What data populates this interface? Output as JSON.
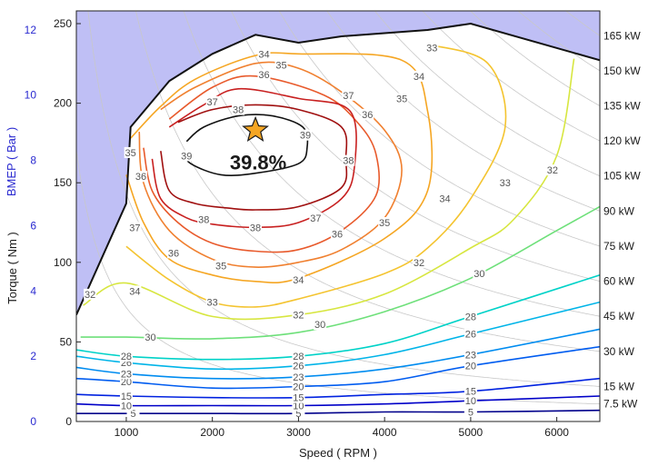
{
  "chart_data": {
    "type": "contour",
    "xlabel": "Speed ( RPM )",
    "ylabel": "Torque ( Nm )",
    "y2label": "BMEP ( Bar )",
    "xlim": [
      420,
      6500
    ],
    "ylim": [
      0,
      258
    ],
    "x_ticks": [
      "1000",
      "2000",
      "3000",
      "4000",
      "5000",
      "6000"
    ],
    "x_tick_values": [
      1000,
      2000,
      3000,
      4000,
      5000,
      6000
    ],
    "y_ticks": [
      "0",
      "50",
      "100",
      "150",
      "200",
      "250"
    ],
    "y_tick_values": [
      0,
      50,
      100,
      150,
      200,
      250
    ],
    "bmep_ticks": [
      "0",
      "2",
      "4",
      "6",
      "8",
      "10",
      "12"
    ],
    "bmep_tick_values": [
      0,
      2,
      4,
      6,
      8,
      10,
      12
    ],
    "bmep_per_nm": 0.04876,
    "power_lines": [
      {
        "label": "7.5 kW",
        "kw": 7.5
      },
      {
        "label": "15 kW",
        "kw": 15
      },
      {
        "label": "30 kW",
        "kw": 30
      },
      {
        "label": "45 kW",
        "kw": 45
      },
      {
        "label": "60 kW",
        "kw": 60
      },
      {
        "label": "75 kW",
        "kw": 75
      },
      {
        "label": "90 kW",
        "kw": 90
      },
      {
        "label": "105 kW",
        "kw": 105
      },
      {
        "label": "120 kW",
        "kw": 120
      },
      {
        "label": "135 kW",
        "kw": 135
      },
      {
        "label": "150 kW",
        "kw": 150
      },
      {
        "label": "165 kW",
        "kw": 165
      }
    ],
    "max_torque_curve": [
      [
        420,
        67
      ],
      [
        1000,
        137
      ],
      [
        1050,
        185
      ],
      [
        1500,
        214
      ],
      [
        2000,
        231
      ],
      [
        2500,
        243
      ],
      [
        3000,
        238
      ],
      [
        3500,
        242
      ],
      [
        4000,
        244
      ],
      [
        4500,
        246
      ],
      [
        5000,
        250
      ],
      [
        6500,
        227
      ]
    ],
    "colors": {
      "plot_bg": "#bfbff5",
      "power_lines": "#c8c8c8",
      "boundary": "#111111"
    },
    "contours": [
      {
        "level": "5",
        "color": "#00008b",
        "points": [
          [
            420,
            5
          ],
          [
            1000,
            5
          ],
          [
            2000,
            5
          ],
          [
            3000,
            5
          ],
          [
            4000,
            6
          ],
          [
            5000,
            6
          ],
          [
            6500,
            7
          ]
        ]
      },
      {
        "level": "10",
        "color": "#0000c8",
        "points": [
          [
            420,
            11
          ],
          [
            1000,
            10
          ],
          [
            2000,
            10
          ],
          [
            3000,
            10
          ],
          [
            4000,
            11
          ],
          [
            5000,
            13
          ],
          [
            6500,
            16
          ]
        ]
      },
      {
        "level": "15",
        "color": "#0022e0",
        "points": [
          [
            420,
            17
          ],
          [
            1000,
            16
          ],
          [
            2000,
            15
          ],
          [
            3000,
            15
          ],
          [
            4000,
            17
          ],
          [
            5000,
            19
          ],
          [
            6500,
            27
          ]
        ]
      },
      {
        "level": "20",
        "color": "#005cf0",
        "points": [
          [
            420,
            27
          ],
          [
            1000,
            25
          ],
          [
            2000,
            21
          ],
          [
            3000,
            22
          ],
          [
            4000,
            25
          ],
          [
            5000,
            35
          ],
          [
            6500,
            47
          ]
        ]
      },
      {
        "level": "23",
        "color": "#008cf0",
        "points": [
          [
            420,
            34
          ],
          [
            1000,
            30
          ],
          [
            2000,
            27
          ],
          [
            3000,
            28
          ],
          [
            4000,
            33
          ],
          [
            5000,
            42
          ],
          [
            6500,
            58
          ]
        ]
      },
      {
        "level": "26",
        "color": "#00b4e8",
        "points": [
          [
            420,
            41
          ],
          [
            1000,
            37
          ],
          [
            2000,
            33
          ],
          [
            3000,
            35
          ],
          [
            4000,
            42
          ],
          [
            5000,
            55
          ],
          [
            6500,
            75
          ]
        ]
      },
      {
        "level": "28",
        "color": "#00d2c8",
        "points": [
          [
            420,
            45
          ],
          [
            1000,
            41
          ],
          [
            2000,
            39
          ],
          [
            3000,
            41
          ],
          [
            4000,
            49
          ],
          [
            5000,
            66
          ],
          [
            6500,
            92
          ]
        ]
      },
      {
        "level": "30",
        "color": "#6ee07a",
        "points": [
          [
            470,
            53
          ],
          [
            1000,
            53
          ],
          [
            2000,
            52
          ],
          [
            3000,
            56
          ],
          [
            4000,
            69
          ],
          [
            5000,
            90
          ],
          [
            6000,
            120
          ],
          [
            6500,
            135
          ]
        ]
      },
      {
        "level": "32",
        "color": "#d7e640",
        "points": [
          [
            500,
            73
          ],
          [
            1000,
            87
          ],
          [
            2000,
            66
          ],
          [
            3000,
            67
          ],
          [
            4000,
            80
          ],
          [
            5000,
            109
          ],
          [
            5500,
            127
          ],
          [
            6000,
            167
          ],
          [
            6200,
            228
          ]
        ]
      },
      {
        "level": "33",
        "color": "#f4c430",
        "points": [
          [
            1000,
            110
          ],
          [
            1500,
            89
          ],
          [
            2000,
            75
          ],
          [
            2500,
            72
          ],
          [
            3000,
            77
          ],
          [
            4000,
            93
          ],
          [
            4500,
            109
          ],
          [
            5000,
            140
          ],
          [
            5400,
            185
          ],
          [
            5200,
            225
          ],
          [
            4500,
            237
          ]
        ]
      },
      {
        "level": "34",
        "color": "#f5a623",
        "points": [
          [
            1000,
            155
          ],
          [
            1200,
            125
          ],
          [
            1500,
            102
          ],
          [
            2000,
            92
          ],
          [
            2500,
            88
          ],
          [
            3000,
            90
          ],
          [
            4000,
            115
          ],
          [
            4500,
            145
          ],
          [
            4500,
            195
          ],
          [
            4200,
            227
          ],
          [
            3000,
            231
          ],
          [
            2500,
            230
          ],
          [
            1800,
            215
          ],
          [
            1400,
            198
          ],
          [
            1050,
            178
          ]
        ]
      },
      {
        "level": "35",
        "color": "#f08030",
        "points": [
          [
            1150,
            182
          ],
          [
            1200,
            150
          ],
          [
            1500,
            120
          ],
          [
            2000,
            102
          ],
          [
            2500,
            97
          ],
          [
            3000,
            100
          ],
          [
            3500,
            108
          ],
          [
            4000,
            128
          ],
          [
            4200,
            158
          ],
          [
            4000,
            183
          ],
          [
            3500,
            207
          ],
          [
            3000,
            222
          ],
          [
            2500,
            225
          ],
          [
            1800,
            210
          ],
          [
            1400,
            196
          ]
        ]
      },
      {
        "level": "36",
        "color": "#e85a2c",
        "points": [
          [
            1200,
            172
          ],
          [
            1300,
            145
          ],
          [
            1600,
            125
          ],
          [
            2000,
            112
          ],
          [
            2500,
            107
          ],
          [
            3000,
            108
          ],
          [
            3500,
            120
          ],
          [
            3900,
            142
          ],
          [
            3900,
            168
          ],
          [
            3700,
            187
          ],
          [
            3300,
            205
          ],
          [
            2500,
            217
          ],
          [
            2000,
            210
          ],
          [
            1500,
            190
          ]
        ]
      },
      {
        "level": "37",
        "color": "#c82020",
        "points": [
          [
            1300,
            165
          ],
          [
            1400,
            140
          ],
          [
            1700,
            128
          ],
          [
            2000,
            124
          ],
          [
            2500,
            122
          ],
          [
            3000,
            125
          ],
          [
            3500,
            140
          ],
          [
            3650,
            160
          ],
          [
            3600,
            195
          ],
          [
            3000,
            203
          ],
          [
            2300,
            209
          ],
          [
            1900,
            199
          ],
          [
            1500,
            185
          ]
        ]
      },
      {
        "level": "38",
        "color": "#a01010",
        "points": [
          [
            1400,
            170
          ],
          [
            1500,
            145
          ],
          [
            1800,
            137
          ],
          [
            2200,
            134
          ],
          [
            2500,
            133
          ],
          [
            3000,
            135
          ],
          [
            3500,
            147
          ],
          [
            3550,
            165
          ],
          [
            3500,
            185
          ],
          [
            3000,
            196
          ],
          [
            2500,
            199
          ],
          [
            2000,
            196
          ],
          [
            1600,
            188
          ]
        ]
      },
      {
        "level": "39",
        "color": "#111111",
        "points": [
          [
            1650,
            170
          ],
          [
            1750,
            162
          ],
          [
            2100,
            155
          ],
          [
            2500,
            156
          ],
          [
            3000,
            162
          ],
          [
            3100,
            172
          ],
          [
            3050,
            185
          ],
          [
            2700,
            192
          ],
          [
            2300,
            192
          ],
          [
            1900,
            185
          ],
          [
            1700,
            176
          ]
        ]
      }
    ],
    "contour_labels": [
      {
        "text": "5",
        "x": 1080,
        "y": 5
      },
      {
        "text": "5",
        "x": 3000,
        "y": 5
      },
      {
        "text": "5",
        "x": 5000,
        "y": 6
      },
      {
        "text": "10",
        "x": 1000,
        "y": 10
      },
      {
        "text": "10",
        "x": 3000,
        "y": 10
      },
      {
        "text": "10",
        "x": 5000,
        "y": 13
      },
      {
        "text": "15",
        "x": 1000,
        "y": 16
      },
      {
        "text": "15",
        "x": 3000,
        "y": 15
      },
      {
        "text": "15",
        "x": 5000,
        "y": 19
      },
      {
        "text": "20",
        "x": 1000,
        "y": 25
      },
      {
        "text": "20",
        "x": 3000,
        "y": 22
      },
      {
        "text": "20",
        "x": 5000,
        "y": 35
      },
      {
        "text": "23",
        "x": 1000,
        "y": 30
      },
      {
        "text": "23",
        "x": 3000,
        "y": 28
      },
      {
        "text": "23",
        "x": 5000,
        "y": 42
      },
      {
        "text": "26",
        "x": 1000,
        "y": 37
      },
      {
        "text": "26",
        "x": 3000,
        "y": 35
      },
      {
        "text": "26",
        "x": 5000,
        "y": 55
      },
      {
        "text": "28",
        "x": 1000,
        "y": 41
      },
      {
        "text": "28",
        "x": 3000,
        "y": 41
      },
      {
        "text": "28",
        "x": 5000,
        "y": 66
      },
      {
        "text": "30",
        "x": 1280,
        "y": 53
      },
      {
        "text": "30",
        "x": 3250,
        "y": 61
      },
      {
        "text": "30",
        "x": 5100,
        "y": 93
      },
      {
        "text": "32",
        "x": 580,
        "y": 80
      },
      {
        "text": "32",
        "x": 3000,
        "y": 67
      },
      {
        "text": "32",
        "x": 4400,
        "y": 100
      },
      {
        "text": "32",
        "x": 5950,
        "y": 158
      },
      {
        "text": "33",
        "x": 2000,
        "y": 75
      },
      {
        "text": "33",
        "x": 5400,
        "y": 150
      },
      {
        "text": "33",
        "x": 4550,
        "y": 235
      },
      {
        "text": "34",
        "x": 1100,
        "y": 82
      },
      {
        "text": "34",
        "x": 3000,
        "y": 89
      },
      {
        "text": "34",
        "x": 4700,
        "y": 140
      },
      {
        "text": "34",
        "x": 4400,
        "y": 217
      },
      {
        "text": "34",
        "x": 2600,
        "y": 231
      },
      {
        "text": "35",
        "x": 2100,
        "y": 98
      },
      {
        "text": "35",
        "x": 4000,
        "y": 125
      },
      {
        "text": "35",
        "x": 4200,
        "y": 203
      },
      {
        "text": "35",
        "x": 1050,
        "y": 169
      },
      {
        "text": "35",
        "x": 2800,
        "y": 224
      },
      {
        "text": "36",
        "x": 1550,
        "y": 106
      },
      {
        "text": "36",
        "x": 3450,
        "y": 118
      },
      {
        "text": "36",
        "x": 3800,
        "y": 193
      },
      {
        "text": "36",
        "x": 1170,
        "y": 154
      },
      {
        "text": "36",
        "x": 2600,
        "y": 218
      },
      {
        "text": "37",
        "x": 1100,
        "y": 122
      },
      {
        "text": "37",
        "x": 3200,
        "y": 128
      },
      {
        "text": "37",
        "x": 3580,
        "y": 205
      },
      {
        "text": "37",
        "x": 2000,
        "y": 201
      },
      {
        "text": "38",
        "x": 1900,
        "y": 127
      },
      {
        "text": "38",
        "x": 2500,
        "y": 122
      },
      {
        "text": "38",
        "x": 3580,
        "y": 164
      },
      {
        "text": "38",
        "x": 2300,
        "y": 196
      },
      {
        "text": "39",
        "x": 1700,
        "y": 167
      },
      {
        "text": "39",
        "x": 3080,
        "y": 180
      }
    ],
    "peak": {
      "label": "39.8%",
      "x": 2500,
      "y": 183
    }
  }
}
